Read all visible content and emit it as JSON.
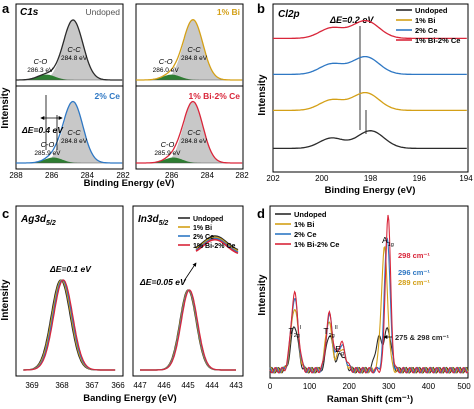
{
  "figure": {
    "panel_letters": [
      "a",
      "b",
      "c",
      "d"
    ]
  },
  "colors": {
    "undoped": "#2b2b2b",
    "bi": "#d4a017",
    "ce": "#2f78c4",
    "bice": "#d9263a",
    "peak_fill": "#c8c8c8",
    "component_fill": "#2e7d32"
  },
  "chart_data": [
    {
      "id": "a",
      "type": "line",
      "title": "C1s",
      "xlabel": "Binding Energy (eV)",
      "ylabel": "Intensity",
      "xlim": [
        288,
        282
      ],
      "x_ticks_left": [
        "288",
        "286",
        "284",
        "282"
      ],
      "x_ticks_right": [
        "286",
        "284",
        "282"
      ],
      "subpanels": [
        {
          "label": "Undoped",
          "series": "Undoped",
          "peak_labels": [
            {
              "text": "C-O",
              "value": "286.3 eV"
            },
            {
              "text": "C-C",
              "value": "284.8 eV"
            }
          ]
        },
        {
          "label": "1% Bi",
          "series": "1% Bi",
          "peak_labels": [
            {
              "text": "C-O",
              "value": "286.0 eV"
            },
            {
              "text": "C-C",
              "value": "284.8 eV"
            }
          ]
        },
        {
          "label": "2% Ce",
          "series": "2% Ce",
          "peak_labels": [
            {
              "text": "C-O",
              "value": "285.9 eV"
            },
            {
              "text": "C-C",
              "value": "284.8 eV"
            }
          ]
        },
        {
          "label": "1% Bi-2% Ce",
          "series": "1% Bi-2% Ce",
          "peak_labels": [
            {
              "text": "C-O",
              "value": "285.9 eV"
            },
            {
              "text": "C-C",
              "value": "284.8 eV"
            }
          ]
        }
      ],
      "annotation": "ΔE=0.4 eV",
      "peaks": {
        "C-C": 284.8,
        "C-O": [
          286.3,
          286.0,
          285.9,
          285.9
        ]
      }
    },
    {
      "id": "b",
      "type": "line",
      "title": "Cl2p",
      "xlabel": "Binding Energy (eV)",
      "ylabel": "Intensity",
      "xlim": [
        202,
        194
      ],
      "x_ticks": [
        "202",
        "200",
        "198",
        "196",
        "194"
      ],
      "legend": [
        "Undoped",
        "1% Bi",
        "2% Ce",
        "1% Bi-2% Ce"
      ],
      "legend_position": "top-right",
      "annotation": "ΔE=0.2 eV",
      "peaks": {
        "Cl2p3/2": [
          198.0,
          198.2
        ],
        "Cl2p1/2": 199.6
      }
    },
    {
      "id": "c",
      "type": "line",
      "subplots": [
        {
          "title": "Ag3d",
          "title_sub": "5/2",
          "xlim": [
            369,
            366
          ],
          "x_ticks": [
            "369",
            "368",
            "367",
            "366"
          ],
          "annotation": "ΔE=0.1 eV",
          "peak": 368.0
        },
        {
          "title": "In3d",
          "title_sub": "5/2",
          "xlim": [
            447,
            443
          ],
          "x_ticks": [
            "447",
            "446",
            "445",
            "444",
            "443"
          ],
          "annotation": "ΔE=0.05 eV",
          "peak": 445.0
        }
      ],
      "xlabel": "Banding Energy (eV)",
      "ylabel": "Intensity",
      "legend": [
        "Undoped",
        "1% Bi",
        "2% Ce",
        "1% Bi-2% Ce"
      ],
      "legend_position": "top-right"
    },
    {
      "id": "d",
      "type": "line",
      "xlabel": "Raman Shift (cm⁻¹)",
      "ylabel": "Intensity",
      "xlim": [
        0,
        500
      ],
      "x_ticks": [
        "0",
        "100",
        "200",
        "300",
        "400",
        "500"
      ],
      "legend": [
        "Undoped",
        "1% Bi",
        "2% Ce",
        "1% Bi-2% Ce"
      ],
      "legend_position": "top-left",
      "mode_labels": [
        {
          "main": "T",
          "sub": "2g",
          "sup": "I",
          "x": 62
        },
        {
          "main": "T",
          "sub": "2g",
          "sup": "II",
          "x": 150
        },
        {
          "main": "E",
          "sub": "g",
          "sup": "",
          "x": 180
        },
        {
          "main": "A",
          "sub": "1g",
          "sup": "",
          "x": 298
        }
      ],
      "peak_annotations": [
        {
          "text": "298 cm⁻¹",
          "series": "1% Bi-2% Ce"
        },
        {
          "text": "296 cm⁻¹",
          "series": "2% Ce"
        },
        {
          "text": "289 cm⁻¹",
          "series": "1% Bi"
        },
        {
          "text": "275 & 298 cm⁻¹",
          "series": "Undoped"
        }
      ]
    }
  ]
}
